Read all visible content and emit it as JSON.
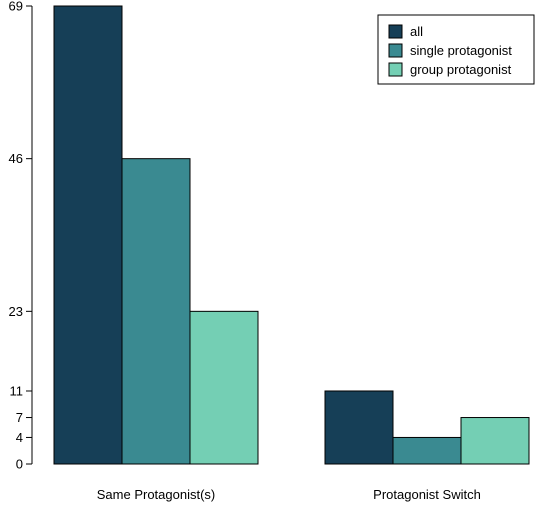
{
  "chart_data": {
    "type": "bar",
    "categories": [
      "Same Protagonist(s)",
      "Protagonist Switch"
    ],
    "series": [
      {
        "name": "all",
        "values": [
          69,
          11
        ],
        "color": "#163f57"
      },
      {
        "name": "single protagonist",
        "values": [
          46,
          4
        ],
        "color": "#3a8a91"
      },
      {
        "name": "group protagonist",
        "values": [
          23,
          7
        ],
        "color": "#74cfb4"
      }
    ],
    "y_ticks": [
      0,
      4,
      7,
      11,
      23,
      46,
      69
    ],
    "ylim": [
      0,
      69
    ],
    "title": "",
    "xlabel": "",
    "ylabel": "",
    "grid": false,
    "legend_position": "top-right",
    "border_color": "#000000"
  }
}
